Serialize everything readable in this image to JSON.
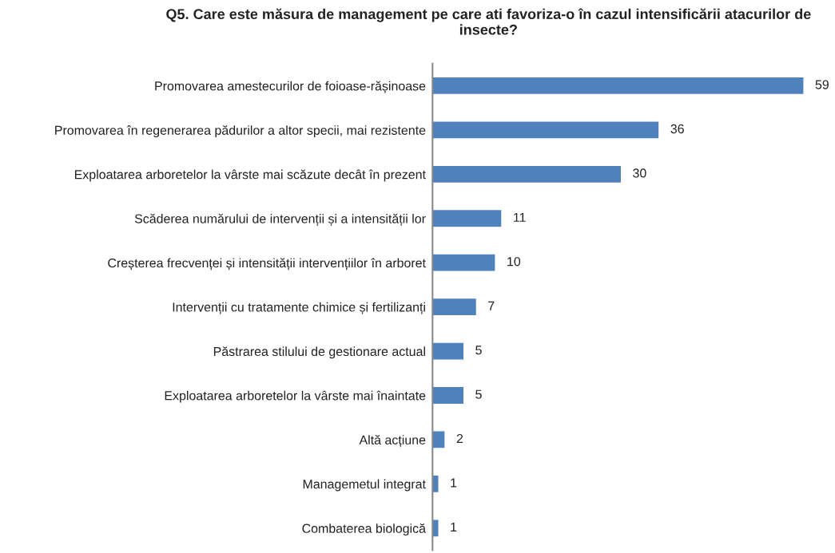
{
  "chart_data": {
    "type": "bar",
    "orientation": "horizontal",
    "title": "Q5. Care este măsura de management pe care ati favoriza-o în cazul intensificării atacurilor de insecte?",
    "categories": [
      "Promovarea amestecurilor de foioase-rășinoase",
      "Promovarea în regenerarea pădurilor a altor specii, mai rezistente",
      "Exploatarea arboretelor la vârste mai scăzute decât în prezent",
      "Scăderea numărului de intervenții și a intensității lor",
      "Creșterea frecvenței și intensității intervențiilor în arboret",
      "Intervenții cu tratamente chimice și fertilizanți",
      "Păstrarea stilului de gestionare actual",
      "Exploatarea arboretelor la vârste mai înaintate",
      "Altă acțiune",
      "Managemetul integrat",
      "Combaterea biologică"
    ],
    "values": [
      59,
      36,
      30,
      11,
      10,
      7,
      5,
      5,
      2,
      1,
      1
    ],
    "color": "#4f81bd",
    "data_labels": true,
    "tick_labels": "y",
    "grid": false,
    "legend": false
  }
}
